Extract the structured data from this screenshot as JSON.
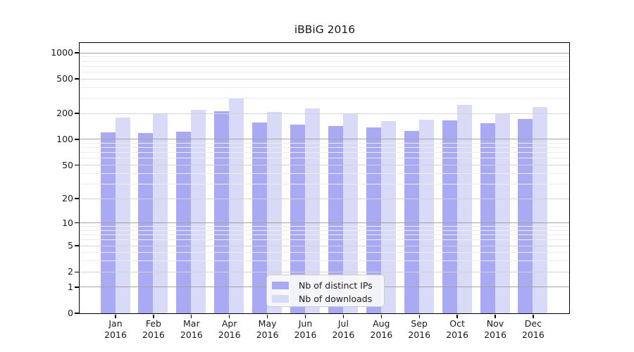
{
  "chart_data": {
    "type": "bar",
    "title": "iBBiG 2016",
    "categories": [
      "Jan 2016",
      "Feb 2016",
      "Mar 2016",
      "Apr 2016",
      "May 2016",
      "Jun 2016",
      "Jul 2016",
      "Aug 2016",
      "Sep 2016",
      "Oct 2016",
      "Nov 2016",
      "Dec 2016"
    ],
    "series": [
      {
        "name": "Nb of distinct IPs",
        "values": [
          119,
          117,
          121,
          208,
          155,
          148,
          141,
          136,
          123,
          165,
          153,
          170
        ]
      },
      {
        "name": "Nb of downloads",
        "values": [
          177,
          200,
          218,
          298,
          206,
          228,
          198,
          161,
          167,
          248,
          194,
          234
        ]
      }
    ],
    "xlabel": "",
    "ylabel": "",
    "y_scale": "log1p",
    "y_ticks": [
      0,
      1,
      2,
      5,
      10,
      20,
      50,
      100,
      200,
      500,
      1000
    ],
    "gridlines": {
      "major": [
        1,
        10,
        100,
        1000
      ],
      "mid": [
        2,
        5,
        20,
        50,
        200,
        500
      ],
      "minor": [
        3,
        4,
        6,
        7,
        8,
        9,
        30,
        40,
        60,
        70,
        80,
        90,
        300,
        400,
        600,
        700,
        800,
        900
      ]
    },
    "ylim": [
      0,
      1290
    ],
    "grid": true,
    "legend_position": "lower-center"
  },
  "colors": {
    "bar_ips": "#a9a9f4",
    "bar_downloads": "#d9d9f8",
    "grid_major": "#a3a3a3",
    "grid_mid": "#d4d4d4",
    "grid_minor": "#ececec",
    "axis": "#000000",
    "text": "#1a1a1a",
    "legend_bg": "#f8f8f8",
    "legend_border": "#cccccc"
  }
}
